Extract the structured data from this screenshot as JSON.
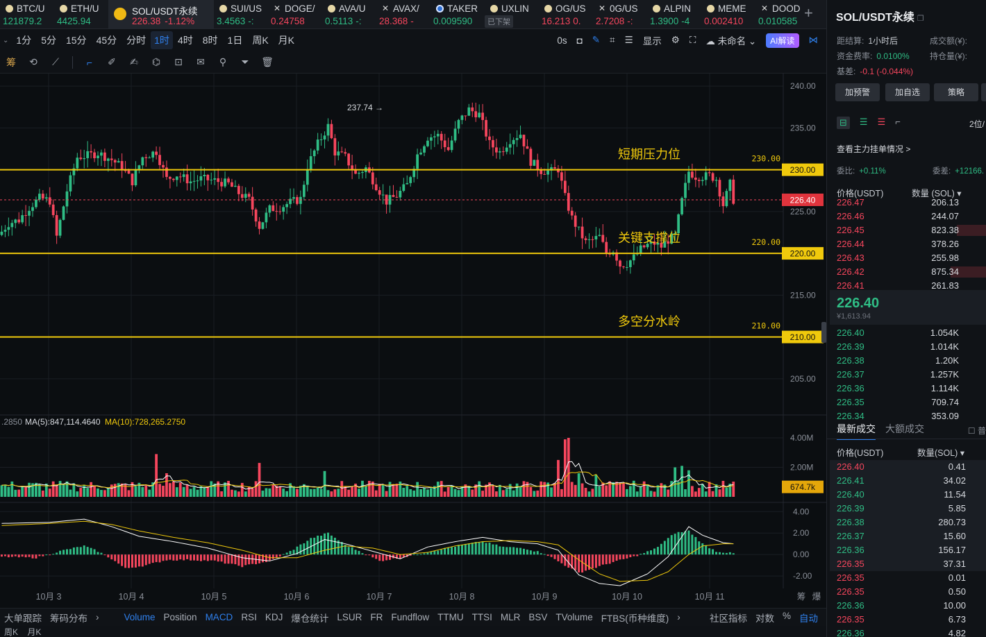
{
  "tickers": [
    {
      "name": "BTC/U",
      "price": "121879.2",
      "color": "green",
      "icon": "coin-icon"
    },
    {
      "name": "ETH/U",
      "price": "4425.94",
      "color": "green",
      "icon": "coin-icon"
    },
    {
      "name": "SOL/USDT永续",
      "price": "226.38",
      "change": "-1.12%",
      "color": "red",
      "icon": "binance-icon",
      "active": true
    },
    {
      "name": "SUI/US",
      "price": "3.4563",
      "suffix": "-:",
      "color": "green",
      "icon": "coin-icon"
    },
    {
      "name": "DOGE/",
      "price": "0.24758",
      "color": "red",
      "icon": "x-icon"
    },
    {
      "name": "AVA/U",
      "price": "0.5113",
      "suffix": "-:",
      "color": "green",
      "icon": "coin-icon"
    },
    {
      "name": "AVAX/",
      "price": "28.368",
      "suffix": "-",
      "color": "red",
      "icon": "x-icon"
    },
    {
      "name": "TAKER",
      "price": "0.009590",
      "color": "green",
      "icon": "blue-coin-icon"
    },
    {
      "name": "UXLIN",
      "price": "",
      "delisted": "已下架",
      "icon": "coin-icon"
    },
    {
      "name": "OG/US",
      "price": "16.213",
      "suffix": "0.",
      "color": "red",
      "icon": "coin-icon"
    },
    {
      "name": "0G/US",
      "price": "2.7208",
      "suffix": "-:",
      "color": "red",
      "icon": "x-icon"
    },
    {
      "name": "ALPIN",
      "price": "1.3900",
      "suffix": "-4",
      "color": "green",
      "icon": "coin-icon"
    },
    {
      "name": "MEME",
      "price": "0.002410",
      "color": "red",
      "icon": "coin-icon"
    },
    {
      "name": "DOOD",
      "price": "0.010585",
      "color": "green",
      "icon": "x-icon"
    }
  ],
  "intervals": [
    "1分",
    "5分",
    "15分",
    "45分",
    "分时",
    "1时",
    "4时",
    "8时",
    "1日",
    "周K",
    "月K"
  ],
  "selected_interval": "1时",
  "toolbar_right": {
    "latency": "0s",
    "display": "显示",
    "layout_name": "未命名",
    "ai": "AI解读"
  },
  "draw_tools_left": "筹",
  "chart_data": {
    "type": "candlestick",
    "symbol": "SOL/USDT永续",
    "interval": "1时",
    "y_axis_ticks": [
      "240.00",
      "235.00",
      "230.00",
      "225.00",
      "220.00",
      "215.00",
      "210.00",
      "205.00"
    ],
    "y_range": [
      202.5,
      241.5
    ],
    "x_axis_ticks": [
      "10月 3",
      "10月 4",
      "10月 5",
      "10月 6",
      "10月 7",
      "10月 8",
      "10月 9",
      "10月 10",
      "10月 11"
    ],
    "x_axis_right_labels": [
      "筹",
      "爆"
    ],
    "high_marker": "237.74",
    "current_price": "226.40",
    "levels": [
      {
        "price": 230,
        "label": "短期压力位",
        "tag": "230.00",
        "axis": "230.00"
      },
      {
        "price": 220,
        "label": "关键支撑位",
        "tag": "220.00",
        "axis": "220.00"
      },
      {
        "price": 210,
        "label": "多空分水岭",
        "tag": "210.00",
        "axis": "210.00"
      }
    ],
    "anchors": [
      [
        0,
        222.6
      ],
      [
        2,
        223.6
      ],
      [
        5,
        224.0
      ],
      [
        8,
        225.5
      ],
      [
        11,
        226.6
      ],
      [
        14,
        226.3
      ],
      [
        16,
        222.0
      ],
      [
        19,
        227.5
      ],
      [
        22,
        231.5
      ],
      [
        25,
        231.7
      ],
      [
        28,
        232.0
      ],
      [
        32,
        231.2
      ],
      [
        35,
        230.3
      ],
      [
        38,
        228.6
      ],
      [
        41,
        231.5
      ],
      [
        45,
        232.2
      ],
      [
        48,
        228.9
      ],
      [
        51,
        229.4
      ],
      [
        55,
        228.6
      ],
      [
        58,
        228.9
      ],
      [
        62,
        228.7
      ],
      [
        66,
        228.3
      ],
      [
        69,
        227.2
      ],
      [
        72,
        226.4
      ],
      [
        75,
        223.2
      ],
      [
        78,
        225.3
      ],
      [
        81,
        225.5
      ],
      [
        84,
        226.1
      ],
      [
        87,
        226.5
      ],
      [
        89,
        230.4
      ],
      [
        92,
        233.1
      ],
      [
        95,
        235.2
      ],
      [
        97,
        232.1
      ],
      [
        100,
        231.5
      ],
      [
        103,
        229.4
      ],
      [
        106,
        230.2
      ],
      [
        109,
        228.1
      ],
      [
        112,
        226.2
      ],
      [
        115,
        226.9
      ],
      [
        118,
        228.2
      ],
      [
        121,
        231.8
      ],
      [
        124,
        233.9
      ],
      [
        127,
        234.1
      ],
      [
        130,
        232.4
      ],
      [
        133,
        235.7
      ],
      [
        136,
        237.2
      ],
      [
        139,
        236.6
      ],
      [
        142,
        233.1
      ],
      [
        145,
        232.1
      ],
      [
        148,
        233.6
      ],
      [
        151,
        234.3
      ],
      [
        154,
        231.0
      ],
      [
        157,
        229.9
      ],
      [
        160,
        229.8
      ],
      [
        162,
        230.1
      ],
      [
        164,
        226.7
      ],
      [
        166,
        224.2
      ],
      [
        168,
        222.7
      ],
      [
        170,
        221.3
      ],
      [
        172,
        221.6
      ],
      [
        174,
        222.0
      ],
      [
        176,
        220.1
      ],
      [
        178,
        220.4
      ],
      [
        180,
        218.6
      ],
      [
        182,
        218.8
      ],
      [
        184,
        219.5
      ],
      [
        186,
        220.5
      ],
      [
        188,
        221.0
      ],
      [
        190,
        221.2
      ],
      [
        192,
        220.8
      ],
      [
        194,
        221.6
      ],
      [
        196,
        222.1
      ],
      [
        198,
        226.3
      ],
      [
        200,
        229.8
      ],
      [
        202,
        229.2
      ],
      [
        204,
        229.2
      ],
      [
        206,
        229.3
      ],
      [
        208,
        228.9
      ],
      [
        210,
        225.8
      ],
      [
        212,
        228.3
      ],
      [
        213,
        226.4
      ]
    ],
    "volume": {
      "ma_text_prefix": ".2850",
      "ma5": "MA(5):847,114.4640",
      "ma10": "MA(10):728,265.2750",
      "axis": [
        "4.00M",
        "2.00M"
      ],
      "current": "674.7k",
      "range": [
        0,
        4800000
      ],
      "spikes": [
        [
          45,
          3.98
        ],
        [
          45,
          2.9
        ],
        [
          48,
          1.6
        ],
        [
          75,
          2.3
        ],
        [
          94,
          1.75
        ],
        [
          164,
          3.9
        ],
        [
          165,
          4.0
        ],
        [
          162,
          2.5
        ],
        [
          168,
          1.6
        ],
        [
          173,
          1.5
        ],
        [
          196,
          2.0
        ],
        [
          198,
          2.1
        ],
        [
          200,
          1.8
        ]
      ]
    },
    "macd": {
      "axis": [
        "4.00",
        "2.00",
        "0.00",
        "-2.00"
      ],
      "range": [
        -2.9,
        4.6
      ],
      "hist_anchors": [
        [
          0,
          -0.2
        ],
        [
          10,
          -0.3
        ],
        [
          18,
          0.4
        ],
        [
          24,
          0.8
        ],
        [
          28,
          0.3
        ],
        [
          32,
          -0.4
        ],
        [
          36,
          -1.3
        ],
        [
          42,
          -1.0
        ],
        [
          48,
          -0.5
        ],
        [
          55,
          -0.5
        ],
        [
          62,
          -0.6
        ],
        [
          70,
          -1.1
        ],
        [
          78,
          -0.6
        ],
        [
          84,
          0.3
        ],
        [
          90,
          1.5
        ],
        [
          95,
          2.0
        ],
        [
          100,
          0.9
        ],
        [
          105,
          0.2
        ],
        [
          110,
          -0.6
        ],
        [
          116,
          -0.3
        ],
        [
          122,
          0.1
        ],
        [
          128,
          0.5
        ],
        [
          134,
          0.9
        ],
        [
          140,
          1.2
        ],
        [
          146,
          0.7
        ],
        [
          152,
          0.6
        ],
        [
          158,
          0.1
        ],
        [
          164,
          -1.0
        ],
        [
          168,
          -1.7
        ],
        [
          172,
          -1.3
        ],
        [
          178,
          -0.7
        ],
        [
          184,
          -0.2
        ],
        [
          190,
          0.5
        ],
        [
          196,
          2.0
        ],
        [
          200,
          2.2
        ],
        [
          204,
          1.0
        ],
        [
          208,
          0.3
        ],
        [
          213,
          0.1
        ]
      ],
      "dif_anchors": [
        [
          0,
          2.9
        ],
        [
          14,
          3.0
        ],
        [
          24,
          3.3
        ],
        [
          32,
          2.6
        ],
        [
          40,
          1.7
        ],
        [
          50,
          1.2
        ],
        [
          60,
          0.6
        ],
        [
          70,
          -0.3
        ],
        [
          78,
          -0.6
        ],
        [
          86,
          0.1
        ],
        [
          94,
          1.4
        ],
        [
          100,
          1.0
        ],
        [
          108,
          0.3
        ],
        [
          116,
          -0.4
        ],
        [
          124,
          0.7
        ],
        [
          132,
          1.2
        ],
        [
          140,
          1.6
        ],
        [
          148,
          1.2
        ],
        [
          156,
          1.0
        ],
        [
          162,
          0.4
        ],
        [
          168,
          -1.9
        ],
        [
          174,
          -2.7
        ],
        [
          180,
          -2.9
        ],
        [
          188,
          -1.8
        ],
        [
          194,
          -0.2
        ],
        [
          200,
          2.6
        ],
        [
          204,
          1.8
        ],
        [
          210,
          1.1
        ],
        [
          213,
          1.0
        ]
      ],
      "dea_anchors": [
        [
          0,
          2.7
        ],
        [
          14,
          2.9
        ],
        [
          24,
          3.1
        ],
        [
          32,
          2.8
        ],
        [
          40,
          2.2
        ],
        [
          50,
          1.6
        ],
        [
          60,
          1.1
        ],
        [
          70,
          0.4
        ],
        [
          78,
          -0.3
        ],
        [
          86,
          -0.3
        ],
        [
          94,
          0.4
        ],
        [
          100,
          0.8
        ],
        [
          108,
          0.6
        ],
        [
          116,
          0.0
        ],
        [
          124,
          0.2
        ],
        [
          132,
          0.8
        ],
        [
          140,
          1.2
        ],
        [
          148,
          1.3
        ],
        [
          156,
          1.2
        ],
        [
          162,
          0.9
        ],
        [
          168,
          -0.5
        ],
        [
          174,
          -1.8
        ],
        [
          180,
          -2.5
        ],
        [
          188,
          -2.4
        ],
        [
          194,
          -1.6
        ],
        [
          200,
          0.0
        ],
        [
          204,
          0.8
        ],
        [
          210,
          1.0
        ],
        [
          213,
          1.0
        ]
      ]
    },
    "colors": {
      "up": "#2fbd85",
      "down": "#f6465d",
      "level": "#f0c90c",
      "grid": "#1a1e24",
      "ma5": "#ffffff",
      "ma10": "#f0c90c"
    }
  },
  "indicators": {
    "left": [
      "大单跟踪",
      "筹码分布"
    ],
    "items": [
      "Volume",
      "Position",
      "MACD",
      "RSI",
      "KDJ",
      "爆仓统计",
      "LSUR",
      "FR",
      "Fundflow",
      "TTMU",
      "TTSI",
      "MLR",
      "BSV",
      "TVolume",
      "FTBS(币种维度)"
    ],
    "active": [
      "Volume",
      "MACD"
    ],
    "right": [
      "社区指标",
      "对数",
      "%",
      "自动"
    ]
  },
  "bottom_strip": [
    "周K",
    "月K"
  ],
  "panel": {
    "title": "SOL/USDT永续",
    "settle_label": "距结算:",
    "settle_value": "1小时后",
    "volume_label": "成交额(¥):",
    "funding_label": "资金费率:",
    "funding_value": "0.0100%",
    "oi_label": "持仓量(¥):",
    "basis_label": "基差:",
    "basis_value": "-0.1 (-0.044%)",
    "buttons": [
      "加预警",
      "加自选",
      "策略"
    ],
    "precision": "2位/",
    "main_orders": "查看主力挂单情况 >",
    "bid_ratio_label": "委比:",
    "bid_ratio_value": "+0.11%",
    "bid_diff_label": "委差:",
    "bid_diff_value": "+12166.",
    "ob_price_head": "价格(USDT)",
    "ob_qty_head": "数量 (SOL) ▾",
    "asks": [
      {
        "p": "226.47",
        "q": "206.13"
      },
      {
        "p": "226.46",
        "q": "244.07"
      },
      {
        "p": "226.45",
        "q": "823.38",
        "depth": 0.2
      },
      {
        "p": "226.44",
        "q": "378.26"
      },
      {
        "p": "226.43",
        "q": "255.98"
      },
      {
        "p": "226.42",
        "q": "875.34",
        "depth": 0.24
      },
      {
        "p": "226.41",
        "q": "261.83"
      }
    ],
    "last": "226.40",
    "last_cny": "¥1,613.94",
    "bids": [
      {
        "p": "226.40",
        "q": "1.054K"
      },
      {
        "p": "226.39",
        "q": "1.014K"
      },
      {
        "p": "226.38",
        "q": "1.20K"
      },
      {
        "p": "226.37",
        "q": "1.257K"
      },
      {
        "p": "226.36",
        "q": "1.114K"
      },
      {
        "p": "226.35",
        "q": "709.74"
      },
      {
        "p": "226.34",
        "q": "353.09"
      }
    ],
    "trades_tab1": "最新成交",
    "trades_tab2": "大额成交",
    "trades_check": "普",
    "tr_price_head": "价格(USDT)",
    "tr_qty_head": "数量(SOL) ▾",
    "trades": [
      {
        "p": "226.40",
        "q": "0.41",
        "c": "red"
      },
      {
        "p": "226.41",
        "q": "34.02",
        "c": "green"
      },
      {
        "p": "226.40",
        "q": "11.54",
        "c": "green"
      },
      {
        "p": "226.39",
        "q": "5.85",
        "c": "green"
      },
      {
        "p": "226.38",
        "q": "280.73",
        "c": "green"
      },
      {
        "p": "226.37",
        "q": "15.60",
        "c": "green"
      },
      {
        "p": "226.36",
        "q": "156.17",
        "c": "green"
      },
      {
        "p": "226.35",
        "q": "37.31",
        "c": "red"
      },
      {
        "p": "226.35",
        "q": "0.01",
        "c": "red"
      },
      {
        "p": "226.35",
        "q": "0.50",
        "c": "red"
      },
      {
        "p": "226.36",
        "q": "10.00",
        "c": "green"
      },
      {
        "p": "226.35",
        "q": "6.73",
        "c": "red"
      },
      {
        "p": "226.36",
        "q": "4.82",
        "c": "green"
      }
    ]
  }
}
